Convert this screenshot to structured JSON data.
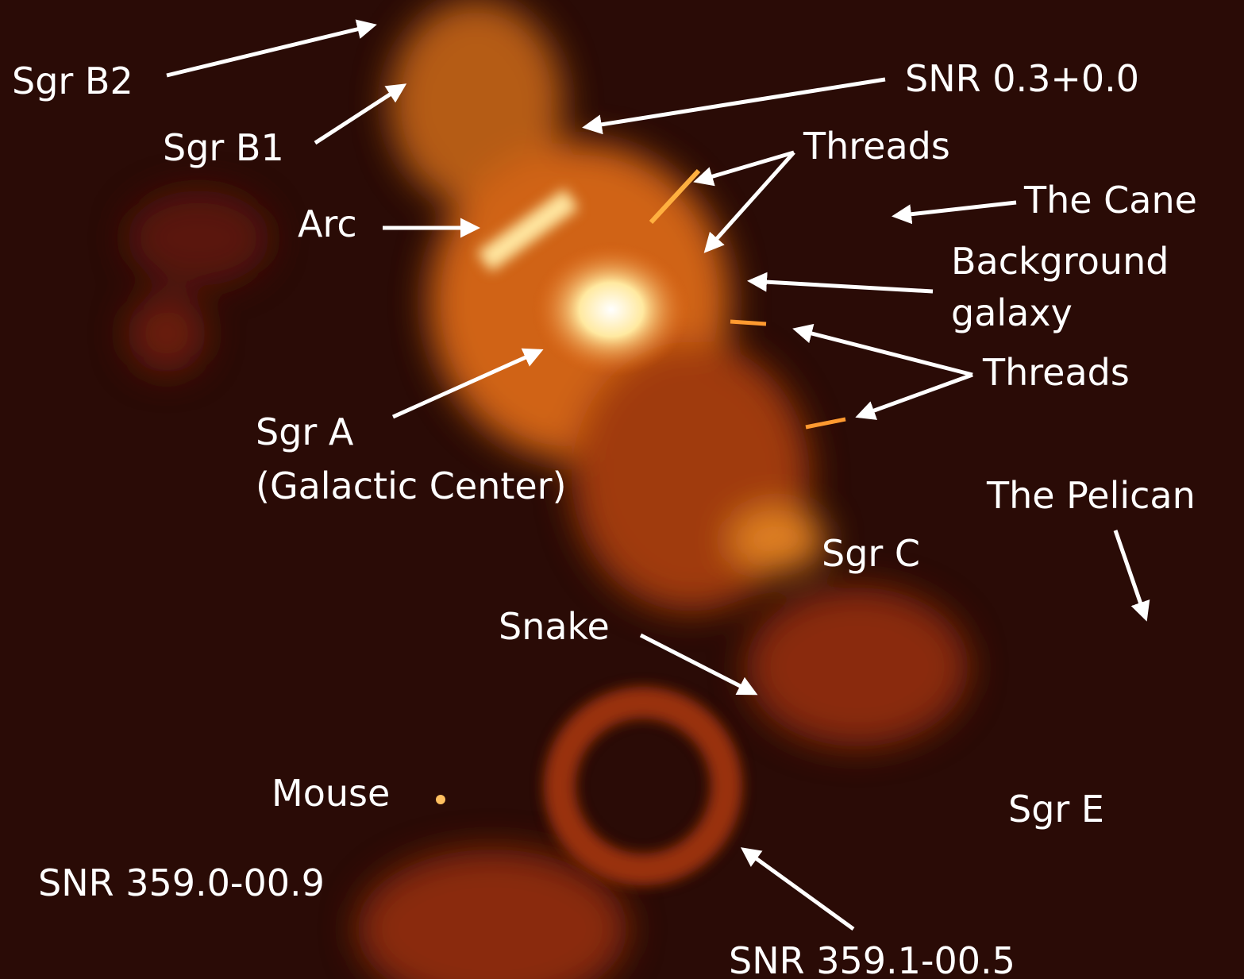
{
  "labels": [
    "Sgr B2",
    "SNR 0.3+0.0",
    "Sgr B1",
    "Threads",
    "The Cane",
    "Arc",
    "Background",
    "galaxy",
    "Threads",
    "Sgr A",
    "(Galactic Center)",
    "The Pelican",
    "Sgr C",
    "Snake",
    "Mouse",
    "Sgr E",
    "SNR 359.0-00.9",
    "SNR 359.1-00.5"
  ]
}
